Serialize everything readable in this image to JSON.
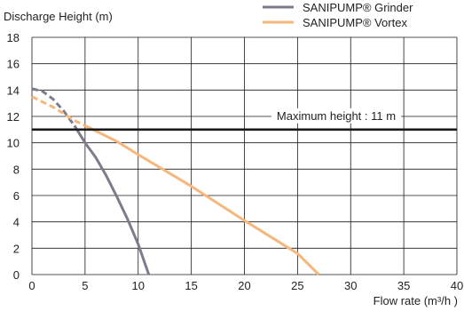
{
  "chart_data": {
    "type": "line",
    "title": "",
    "ylabel": "Discharge Height (m)",
    "xlabel": "Flow rate (m³/h )",
    "xlim": [
      0,
      40
    ],
    "ylim": [
      0,
      18
    ],
    "x_ticks": [
      0,
      5,
      10,
      15,
      20,
      25,
      30,
      35,
      40
    ],
    "y_ticks": [
      0,
      2,
      4,
      6,
      8,
      10,
      12,
      14,
      16,
      18
    ],
    "grid": true,
    "legend_position": "top-right",
    "series": [
      {
        "name": "SANIPUMP® Grinder",
        "color": "#7f7b8e",
        "dashed_segment": [
          [
            0,
            14.1
          ],
          [
            1,
            13.9
          ],
          [
            2,
            13.3
          ],
          [
            3,
            12.4
          ],
          [
            4,
            11.3
          ]
        ],
        "values": [
          [
            4,
            11.3
          ],
          [
            5,
            10.0
          ],
          [
            6,
            8.9
          ],
          [
            7,
            7.5
          ],
          [
            8,
            5.9
          ],
          [
            9,
            4.2
          ],
          [
            10,
            2.3
          ],
          [
            11,
            0.0
          ]
        ]
      },
      {
        "name": "SANIPUMP® Vortex",
        "color": "#f5b77c",
        "dashed_segment": [
          [
            0,
            13.5
          ],
          [
            1,
            13.1
          ],
          [
            2,
            12.7
          ],
          [
            3,
            12.2
          ],
          [
            4,
            11.7
          ],
          [
            5,
            11.3
          ]
        ],
        "values": [
          [
            5,
            11.3
          ],
          [
            8,
            10.1
          ],
          [
            10,
            9.1
          ],
          [
            15,
            6.7
          ],
          [
            20,
            4.1
          ],
          [
            25,
            1.6
          ],
          [
            27,
            0.0
          ]
        ]
      }
    ],
    "reference_line": {
      "y": 11,
      "label": "Maximum height : 11 m",
      "color": "#1a1a1a"
    }
  }
}
